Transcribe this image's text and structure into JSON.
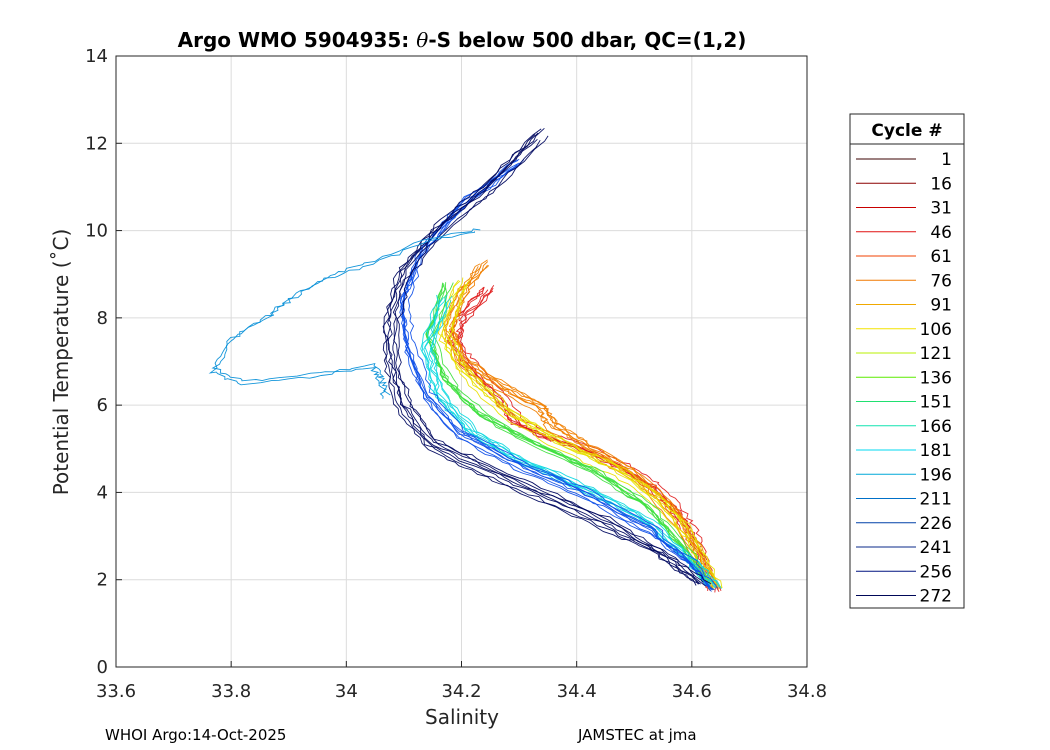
{
  "chart_data": {
    "type": "line",
    "title": "Argo WMO 5904935: θ-S below 500 dbar,  QC=(1,2)",
    "title_prefix": "Argo WMO 5904935: ",
    "title_theta": "θ",
    "title_suffix": "-S below 500 dbar,  QC=(1,2)",
    "xlabel": "Salinity",
    "ylabel": "Potential Temperature (˚C)",
    "xlim": [
      33.6,
      34.8
    ],
    "ylim": [
      0,
      14
    ],
    "xticks": [
      33.6,
      33.8,
      34,
      34.2,
      34.4,
      34.6,
      34.8
    ],
    "xtick_labels": [
      "33.6",
      "33.8",
      "34",
      "34.2",
      "34.4",
      "34.6",
      "34.8"
    ],
    "yticks": [
      0,
      2,
      4,
      6,
      8,
      10,
      12,
      14
    ],
    "ytick_labels": [
      "0",
      "2",
      "4",
      "6",
      "8",
      "10",
      "12",
      "14"
    ],
    "grid": true,
    "legend": {
      "title": "Cycle #",
      "placement": "outside-right",
      "entries": [
        {
          "label": "1",
          "color": "#3b0000"
        },
        {
          "label": "16",
          "color": "#8b0000"
        },
        {
          "label": "31",
          "color": "#c80000"
        },
        {
          "label": "46",
          "color": "#e01010"
        },
        {
          "label": "61",
          "color": "#f04000"
        },
        {
          "label": "76",
          "color": "#f07800"
        },
        {
          "label": "91",
          "color": "#f0a800"
        },
        {
          "label": "106",
          "color": "#f4e400"
        },
        {
          "label": "121",
          "color": "#b8f000"
        },
        {
          "label": "136",
          "color": "#5cec00"
        },
        {
          "label": "151",
          "color": "#20e070"
        },
        {
          "label": "166",
          "color": "#10e4b0"
        },
        {
          "label": "181",
          "color": "#00d8f0"
        },
        {
          "label": "196",
          "color": "#00a8d8"
        },
        {
          "label": "211",
          "color": "#0070c8"
        },
        {
          "label": "226",
          "color": "#0040a8"
        },
        {
          "label": "241",
          "color": "#082888"
        },
        {
          "label": "256",
          "color": "#001480"
        },
        {
          "label": "272",
          "color": "#000858"
        }
      ]
    },
    "series": [
      {
        "name": "red-profiles",
        "color": "#e02020",
        "points": [
          [
            34.25,
            8.7
          ],
          [
            34.2,
            8.0
          ],
          [
            34.19,
            7.5
          ],
          [
            34.21,
            7.0
          ],
          [
            34.26,
            6.3
          ],
          [
            34.3,
            5.6
          ],
          [
            34.35,
            5.3
          ],
          [
            34.42,
            5.0
          ],
          [
            34.48,
            4.6
          ],
          [
            34.53,
            4.2
          ],
          [
            34.57,
            3.7
          ],
          [
            34.6,
            3.1
          ],
          [
            34.62,
            2.5
          ],
          [
            34.64,
            1.75
          ]
        ]
      },
      {
        "name": "orange-profiles",
        "color": "#f08000",
        "points": [
          [
            34.24,
            9.2
          ],
          [
            34.2,
            8.5
          ],
          [
            34.18,
            7.7
          ],
          [
            34.2,
            7.0
          ],
          [
            34.27,
            6.4
          ],
          [
            34.34,
            5.9
          ],
          [
            34.36,
            5.5
          ],
          [
            34.42,
            5.0
          ],
          [
            34.5,
            4.4
          ],
          [
            34.57,
            3.5
          ],
          [
            34.64,
            1.8
          ]
        ]
      },
      {
        "name": "yellow-profiles",
        "color": "#e8e000",
        "points": [
          [
            34.2,
            8.8
          ],
          [
            34.17,
            7.6
          ],
          [
            34.2,
            6.8
          ],
          [
            34.28,
            5.8
          ],
          [
            34.37,
            5.1
          ],
          [
            34.47,
            4.5
          ],
          [
            34.55,
            3.7
          ],
          [
            34.6,
            2.9
          ],
          [
            34.64,
            1.8
          ]
        ]
      },
      {
        "name": "green-profiles",
        "color": "#40e040",
        "points": [
          [
            34.18,
            8.7
          ],
          [
            34.15,
            7.5
          ],
          [
            34.18,
            6.5
          ],
          [
            34.24,
            5.7
          ],
          [
            34.34,
            5.0
          ],
          [
            34.44,
            4.4
          ],
          [
            34.53,
            3.6
          ],
          [
            34.6,
            2.6
          ],
          [
            34.64,
            1.8
          ]
        ]
      },
      {
        "name": "cyan-profiles",
        "color": "#10d8e0",
        "points": [
          [
            34.17,
            8.4
          ],
          [
            34.14,
            7.2
          ],
          [
            34.16,
            6.2
          ],
          [
            34.22,
            5.3
          ],
          [
            34.3,
            4.7
          ],
          [
            34.42,
            4.0
          ],
          [
            34.52,
            3.3
          ],
          [
            34.6,
            2.4
          ],
          [
            34.64,
            1.8
          ]
        ]
      },
      {
        "name": "blue-profiles",
        "color": "#1050e8",
        "points": [
          [
            34.3,
            11.5
          ],
          [
            34.2,
            10.5
          ],
          [
            34.13,
            9.4
          ],
          [
            34.1,
            8.3
          ],
          [
            34.11,
            7.3
          ],
          [
            34.14,
            6.2
          ],
          [
            34.2,
            5.3
          ],
          [
            34.3,
            4.6
          ],
          [
            34.42,
            3.9
          ],
          [
            34.53,
            3.1
          ],
          [
            34.6,
            2.4
          ],
          [
            34.64,
            1.75
          ]
        ]
      },
      {
        "name": "navy-profiles",
        "color": "#000860",
        "points": [
          [
            34.34,
            12.2
          ],
          [
            34.25,
            11.0
          ],
          [
            34.16,
            10.0
          ],
          [
            34.1,
            9.0
          ],
          [
            34.08,
            8.0
          ],
          [
            34.08,
            7.0
          ],
          [
            34.1,
            6.0
          ],
          [
            34.15,
            5.1
          ],
          [
            34.23,
            4.6
          ],
          [
            34.33,
            4.0
          ],
          [
            34.45,
            3.3
          ],
          [
            34.55,
            2.6
          ],
          [
            34.62,
            1.9
          ]
        ]
      },
      {
        "name": "outlier-profile",
        "color": "#0890d8",
        "points": [
          [
            34.23,
            10.0
          ],
          [
            34.15,
            9.8
          ],
          [
            34.03,
            9.2
          ],
          [
            33.96,
            8.9
          ],
          [
            33.9,
            8.4
          ],
          [
            33.86,
            8.0
          ],
          [
            33.8,
            7.5
          ],
          [
            33.77,
            6.8
          ],
          [
            33.82,
            6.5
          ],
          [
            33.95,
            6.7
          ],
          [
            34.05,
            6.9
          ],
          [
            34.06,
            6.5
          ],
          [
            34.07,
            6.2
          ]
        ]
      }
    ]
  },
  "footer": {
    "left": "WHOI Argo:14-Oct-2025",
    "right": "JAMSTEC at jma"
  }
}
